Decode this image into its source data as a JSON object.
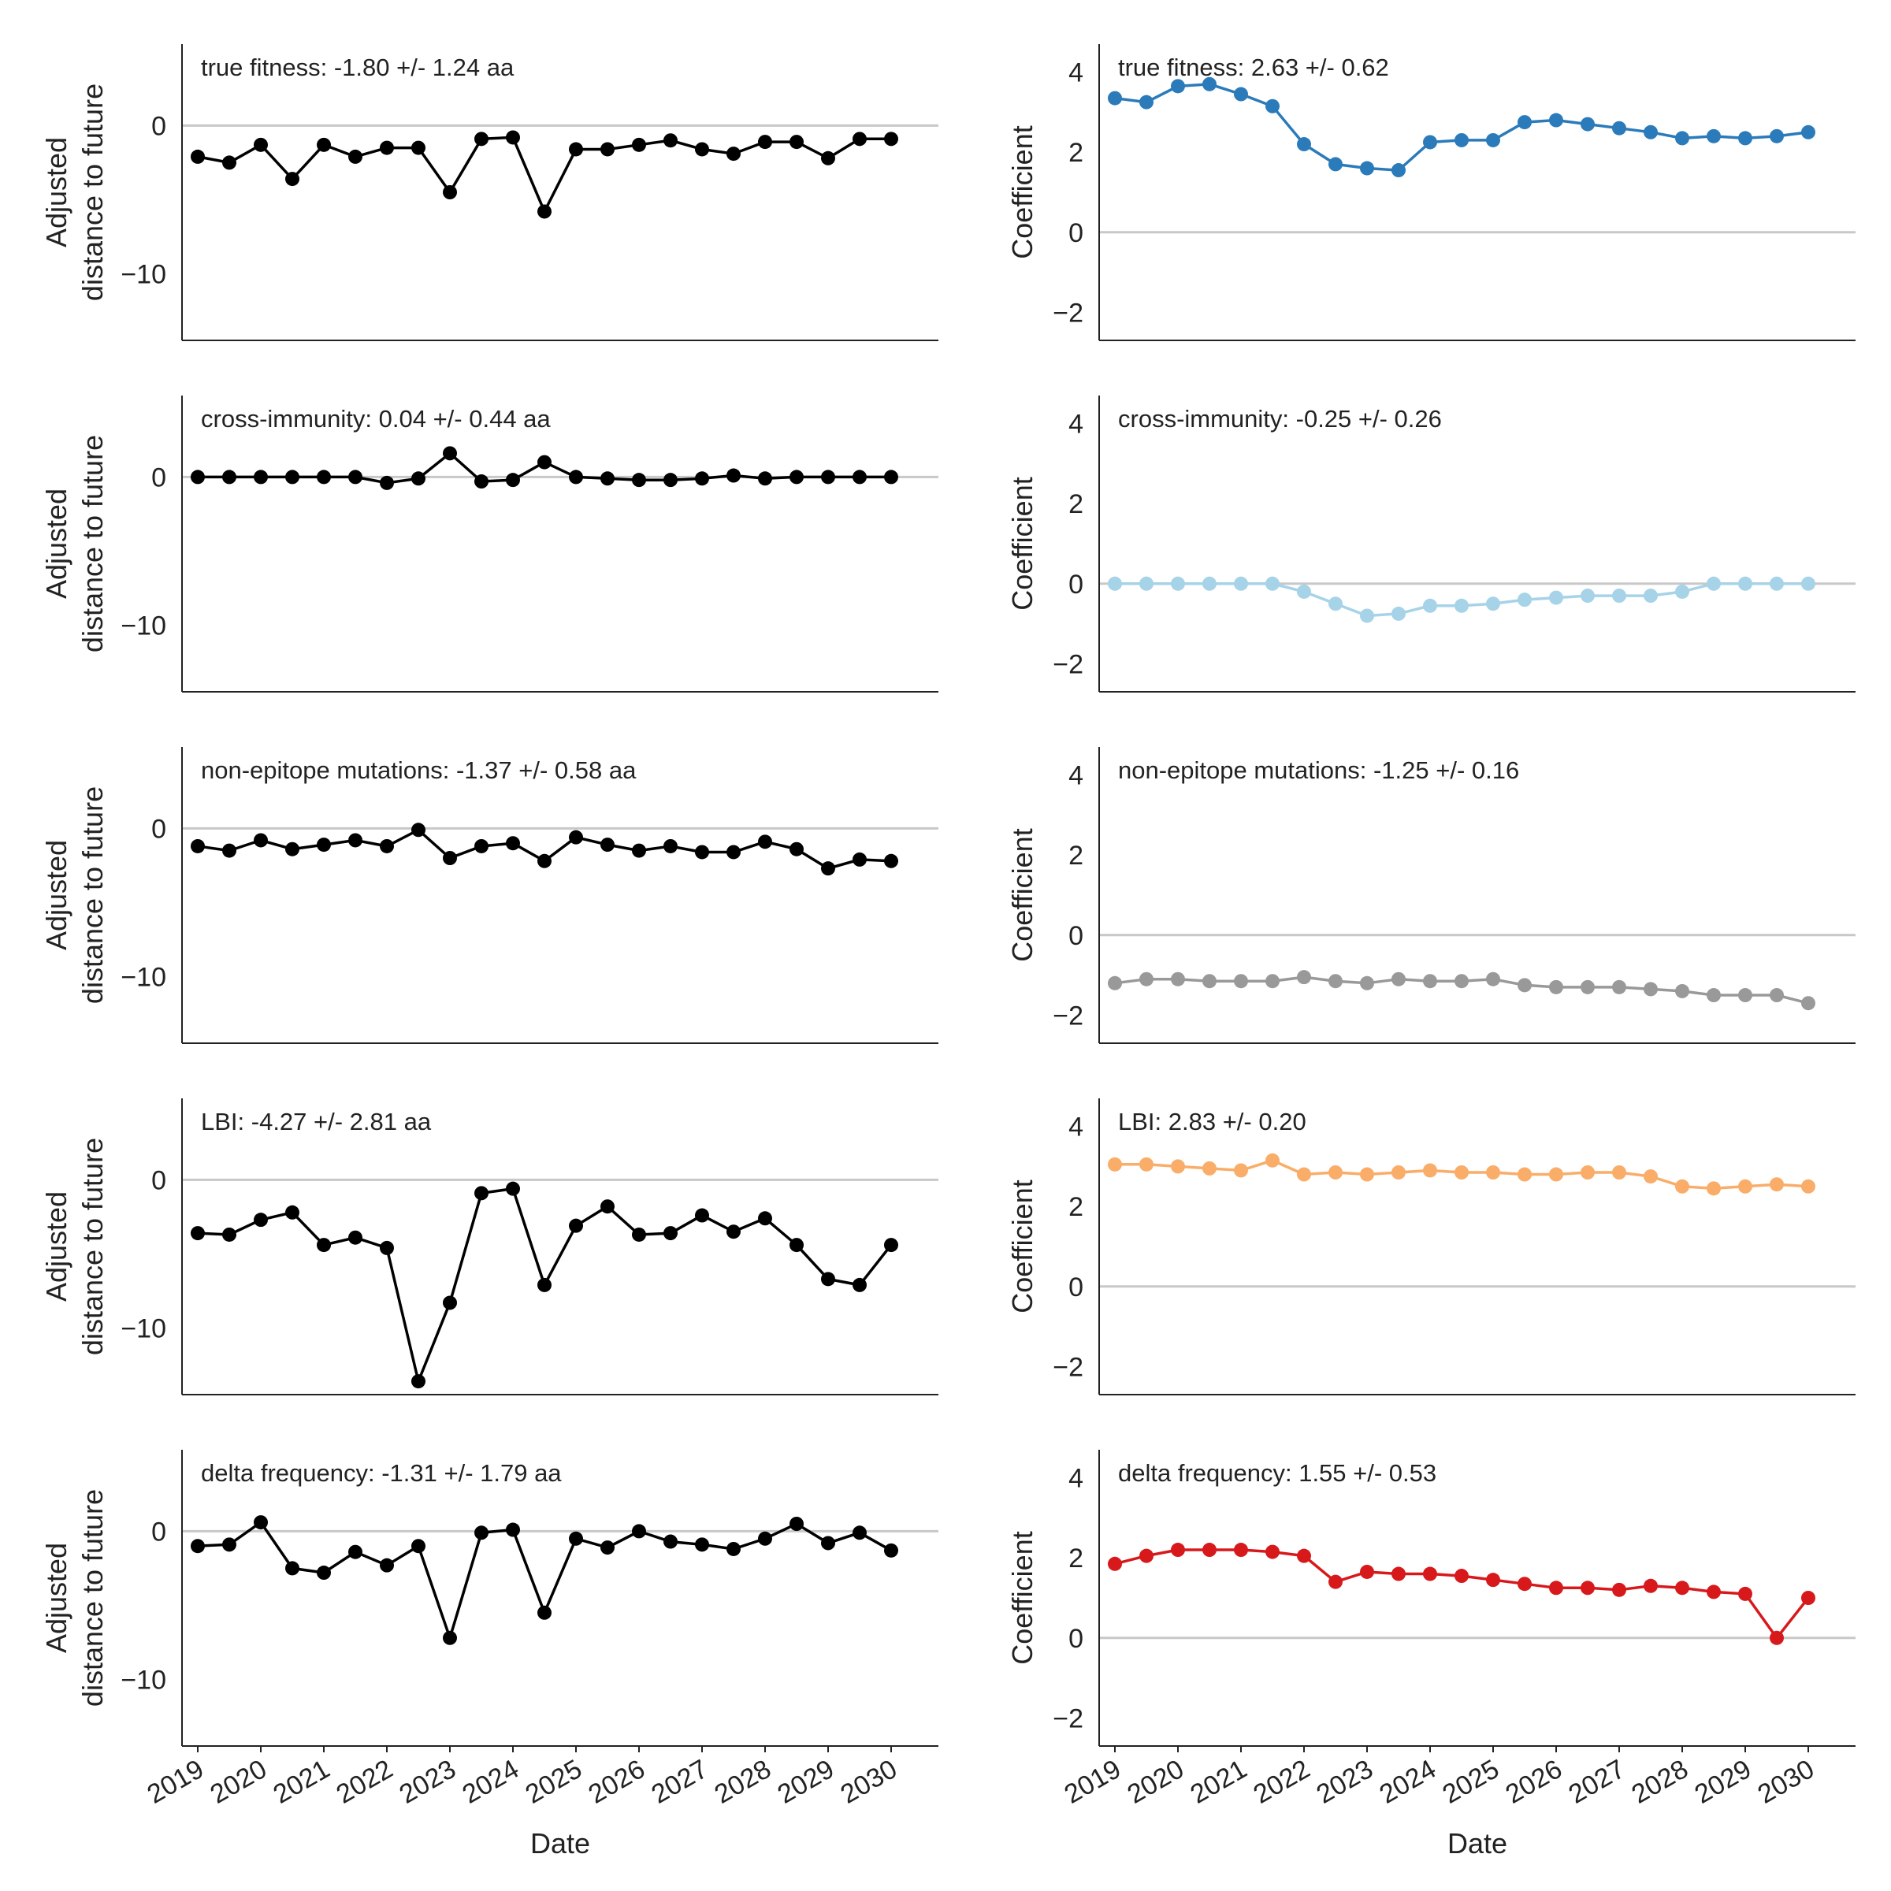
{
  "chart_data": [
    {
      "type": "line",
      "column": "left",
      "annotation": "true fitness: -1.80 +/- 1.24 aa",
      "ylabel": [
        "Adjusted",
        "distance to future"
      ],
      "xlabel": "",
      "ylim": [
        -14.5,
        5.5
      ],
      "yticks": [
        0,
        -10
      ],
      "color": "#000000",
      "values": [
        -2.1,
        -2.5,
        -1.3,
        -3.6,
        -1.3,
        -2.1,
        -1.5,
        -1.5,
        -4.5,
        -0.9,
        -0.8,
        -5.8,
        -1.6,
        -1.6,
        -1.3,
        -1.0,
        -1.6,
        -1.9,
        -1.1,
        -1.1,
        -2.2,
        -0.9,
        -0.9
      ]
    },
    {
      "type": "line",
      "column": "right",
      "annotation": "true fitness: 2.63 +/- 0.62",
      "ylabel": [
        "Coefficient"
      ],
      "xlabel": "",
      "ylim": [
        -2.7,
        4.7
      ],
      "yticks": [
        4,
        2,
        0,
        -2
      ],
      "color": "#2b7bba",
      "values": [
        3.35,
        3.25,
        3.65,
        3.7,
        3.45,
        3.15,
        2.2,
        1.7,
        1.6,
        1.55,
        2.25,
        2.3,
        2.3,
        2.75,
        2.8,
        2.7,
        2.6,
        2.5,
        2.35,
        2.4,
        2.35,
        2.4,
        2.5
      ]
    },
    {
      "type": "line",
      "column": "left",
      "annotation": "cross-immunity: 0.04 +/- 0.44 aa",
      "ylabel": [
        "Adjusted",
        "distance to future"
      ],
      "xlabel": "",
      "ylim": [
        -14.5,
        5.5
      ],
      "yticks": [
        0,
        -10
      ],
      "color": "#000000",
      "values": [
        0.0,
        0.0,
        0.0,
        0.0,
        0.0,
        0.0,
        -0.4,
        -0.1,
        1.6,
        -0.3,
        -0.2,
        1.0,
        0.0,
        -0.1,
        -0.2,
        -0.2,
        -0.1,
        0.1,
        -0.1,
        0.0,
        0.0,
        0.0,
        0.0
      ]
    },
    {
      "type": "line",
      "column": "right",
      "annotation": "cross-immunity: -0.25 +/- 0.26",
      "ylabel": [
        "Coefficient"
      ],
      "xlabel": "",
      "ylim": [
        -2.7,
        4.7
      ],
      "yticks": [
        4,
        2,
        0,
        -2
      ],
      "color": "#a6d3e8",
      "values": [
        0.0,
        0.0,
        0.0,
        0.0,
        0.0,
        0.0,
        -0.2,
        -0.5,
        -0.8,
        -0.75,
        -0.55,
        -0.55,
        -0.5,
        -0.4,
        -0.35,
        -0.3,
        -0.3,
        -0.3,
        -0.2,
        0.0,
        0.0,
        0.0,
        0.0
      ]
    },
    {
      "type": "line",
      "column": "left",
      "annotation": "non-epitope mutations: -1.37 +/- 0.58 aa",
      "ylabel": [
        "Adjusted",
        "distance to future"
      ],
      "xlabel": "",
      "ylim": [
        -14.5,
        5.5
      ],
      "yticks": [
        0,
        -10
      ],
      "color": "#000000",
      "values": [
        -1.2,
        -1.5,
        -0.8,
        -1.4,
        -1.1,
        -0.8,
        -1.2,
        -0.1,
        -2.0,
        -1.2,
        -1.0,
        -2.2,
        -0.6,
        -1.1,
        -1.5,
        -1.2,
        -1.6,
        -1.6,
        -0.9,
        -1.4,
        -2.7,
        -2.1,
        -2.2
      ]
    },
    {
      "type": "line",
      "column": "right",
      "annotation": "non-epitope mutations: -1.25 +/- 0.16",
      "ylabel": [
        "Coefficient"
      ],
      "xlabel": "",
      "ylim": [
        -2.7,
        4.7
      ],
      "yticks": [
        4,
        2,
        0,
        -2
      ],
      "color": "#999999",
      "values": [
        -1.2,
        -1.1,
        -1.1,
        -1.15,
        -1.15,
        -1.15,
        -1.05,
        -1.15,
        -1.2,
        -1.1,
        -1.15,
        -1.15,
        -1.1,
        -1.25,
        -1.3,
        -1.3,
        -1.3,
        -1.35,
        -1.4,
        -1.5,
        -1.5,
        -1.5,
        -1.7
      ]
    },
    {
      "type": "line",
      "column": "left",
      "annotation": "LBI: -4.27 +/- 2.81 aa",
      "ylabel": [
        "Adjusted",
        "distance to future"
      ],
      "xlabel": "",
      "ylim": [
        -14.5,
        5.5
      ],
      "yticks": [
        0,
        -10
      ],
      "color": "#000000",
      "values": [
        -3.6,
        -3.7,
        -2.7,
        -2.2,
        -4.4,
        -3.9,
        -4.6,
        -13.6,
        -8.3,
        -0.9,
        -0.6,
        -7.1,
        -3.1,
        -1.8,
        -3.7,
        -3.6,
        -2.4,
        -3.5,
        -2.6,
        -4.4,
        -6.7,
        -7.1,
        -4.4
      ]
    },
    {
      "type": "line",
      "column": "right",
      "annotation": "LBI: 2.83 +/- 0.20",
      "ylabel": [
        "Coefficient"
      ],
      "xlabel": "",
      "ylim": [
        -2.7,
        4.7
      ],
      "yticks": [
        4,
        2,
        0,
        -2
      ],
      "color": "#f9ad69",
      "values": [
        3.05,
        3.05,
        3.0,
        2.95,
        2.9,
        3.15,
        2.8,
        2.85,
        2.8,
        2.85,
        2.9,
        2.85,
        2.85,
        2.8,
        2.8,
        2.85,
        2.85,
        2.75,
        2.5,
        2.45,
        2.5,
        2.55,
        2.5
      ]
    },
    {
      "type": "line",
      "column": "left",
      "annotation": "delta frequency: -1.31 +/- 1.79 aa",
      "ylabel": [
        "Adjusted",
        "distance to future"
      ],
      "xlabel": "Date",
      "ylim": [
        -14.5,
        5.5
      ],
      "yticks": [
        0,
        -10
      ],
      "color": "#000000",
      "values": [
        -1.0,
        -0.9,
        0.6,
        -2.5,
        -2.8,
        -1.4,
        -2.3,
        -1.0,
        -7.2,
        -0.1,
        0.1,
        -5.5,
        -0.5,
        -1.1,
        0.0,
        -0.7,
        -0.9,
        -1.2,
        -0.5,
        0.5,
        -0.8,
        -0.1,
        -1.3
      ]
    },
    {
      "type": "line",
      "column": "right",
      "annotation": "delta frequency: 1.55 +/- 0.53",
      "ylabel": [
        "Coefficient"
      ],
      "xlabel": "Date",
      "ylim": [
        -2.7,
        4.7
      ],
      "yticks": [
        4,
        2,
        0,
        -2
      ],
      "color": "#d7191c",
      "values": [
        1.85,
        2.05,
        2.2,
        2.2,
        2.2,
        2.15,
        2.05,
        1.4,
        1.65,
        1.6,
        1.6,
        1.55,
        1.45,
        1.35,
        1.25,
        1.25,
        1.2,
        1.3,
        1.25,
        1.15,
        1.1,
        0.0,
        1.0
      ]
    }
  ],
  "x_axis": {
    "label": "Date",
    "range": [
      2018.75,
      2030.75
    ],
    "ticks": [
      "2019",
      "2020",
      "2021",
      "2022",
      "2023",
      "2024",
      "2025",
      "2026",
      "2027",
      "2028",
      "2029",
      "2030"
    ],
    "x": [
      2019.0,
      2019.5,
      2020.0,
      2020.5,
      2021.0,
      2021.5,
      2022.0,
      2022.5,
      2023.0,
      2023.5,
      2024.0,
      2024.5,
      2025.0,
      2025.5,
      2026.0,
      2026.5,
      2027.0,
      2027.5,
      2028.0,
      2028.5,
      2029.0,
      2029.5,
      2030.0
    ]
  }
}
